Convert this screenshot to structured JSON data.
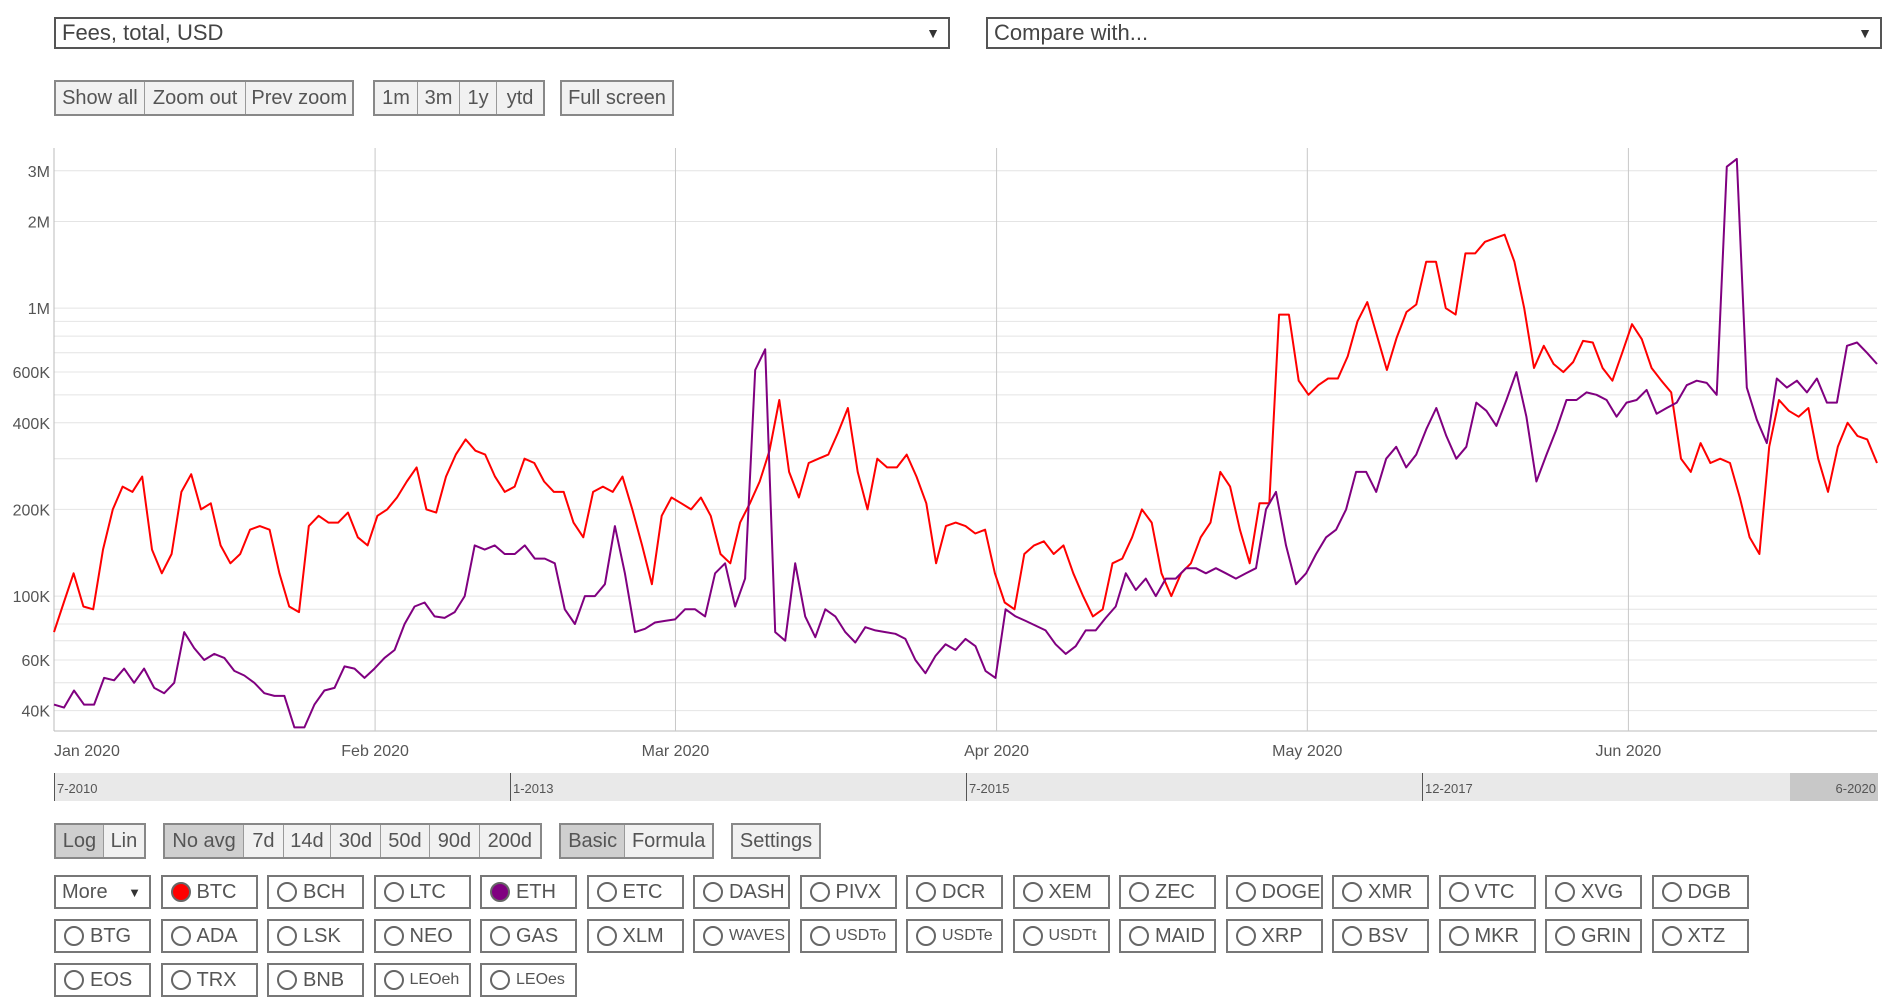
{
  "metric_select": {
    "value": "Fees, total, USD",
    "arrow": "▼"
  },
  "compare_select": {
    "value": "Compare with...",
    "arrow": "▼"
  },
  "zoom_buttons": [
    "Show all",
    "Zoom out",
    "Prev zoom"
  ],
  "range_buttons": [
    "1m",
    "3m",
    "1y",
    "ytd"
  ],
  "fullscreen_label": "Full screen",
  "scale_buttons": [
    "Log",
    "Lin"
  ],
  "avg_buttons": [
    "No avg",
    "7d",
    "14d",
    "30d",
    "50d",
    "90d",
    "200d"
  ],
  "mode_buttons": [
    "Basic",
    "Formula"
  ],
  "settings_label": "Settings",
  "more_label": "More",
  "more_arrow": "▼",
  "navigator_labels": [
    "7-2010",
    "1-2013",
    "7-2015",
    "12-2017",
    "6-2020"
  ],
  "coins": [
    {
      "name": "BTC",
      "color": "#ff0000",
      "selected": true
    },
    {
      "name": "BCH"
    },
    {
      "name": "LTC"
    },
    {
      "name": "ETH",
      "color": "#800080",
      "selected": true
    },
    {
      "name": "ETC"
    },
    {
      "name": "DASH"
    },
    {
      "name": "PIVX"
    },
    {
      "name": "DCR"
    },
    {
      "name": "XEM"
    },
    {
      "name": "ZEC"
    },
    {
      "name": "DOGE"
    },
    {
      "name": "XMR"
    },
    {
      "name": "VTC"
    },
    {
      "name": "XVG"
    },
    {
      "name": "DGB"
    },
    {
      "name": "BTG"
    },
    {
      "name": "ADA"
    },
    {
      "name": "LSK"
    },
    {
      "name": "NEO"
    },
    {
      "name": "GAS"
    },
    {
      "name": "XLM"
    },
    {
      "name": "WAVES"
    },
    {
      "name": "USDTo"
    },
    {
      "name": "USDTe"
    },
    {
      "name": "USDTt"
    },
    {
      "name": "MAID"
    },
    {
      "name": "XRP"
    },
    {
      "name": "BSV"
    },
    {
      "name": "MKR"
    },
    {
      "name": "GRIN"
    },
    {
      "name": "XTZ"
    },
    {
      "name": "EOS"
    },
    {
      "name": "TRX"
    },
    {
      "name": "BNB"
    },
    {
      "name": "LEOeh"
    },
    {
      "name": "LEOes"
    }
  ],
  "chart_data": {
    "type": "line",
    "title": "",
    "yscale": "log",
    "ylim": [
      34000,
      3600000
    ],
    "ytick_values": [
      40000,
      60000,
      100000,
      200000,
      400000,
      600000,
      1000000,
      2000000,
      3000000
    ],
    "ytick_labels": [
      "40K",
      "60K",
      "100K",
      "200K",
      "400K",
      "600K",
      "1M",
      "2M",
      "3M"
    ],
    "xtick_labels": [
      "Jan 2020",
      "Feb 2020",
      "Mar 2020",
      "Apr 2020",
      "May 2020",
      "Jun 2020"
    ],
    "xtick_days": [
      0,
      31,
      60,
      91,
      121,
      152
    ],
    "xlim": [
      0,
      176
    ],
    "grid": true,
    "legend": "none",
    "series": [
      {
        "color": "#ff0000",
        "values": [
          75000,
          95000,
          120000,
          92000,
          90000,
          145000,
          200000,
          240000,
          230000,
          260000,
          145000,
          120000,
          140000,
          230000,
          265000,
          200000,
          210000,
          150000,
          130000,
          140000,
          170000,
          175000,
          170000,
          120000,
          92000,
          88000,
          175000,
          190000,
          180000,
          180000,
          195000,
          160000,
          150000,
          190000,
          200000,
          220000,
          250000,
          280000,
          200000,
          195000,
          260000,
          310000,
          350000,
          320000,
          310000,
          260000,
          230000,
          240000,
          300000,
          290000,
          250000,
          230000,
          230000,
          180000,
          160000,
          230000,
          240000,
          230000,
          260000,
          200000,
          150000,
          110000,
          190000,
          220000,
          210000,
          200000,
          220000,
          190000,
          140000,
          130000,
          180000,
          210000,
          250000,
          320000,
          480000,
          270000,
          220000,
          290000,
          300000,
          310000,
          370000,
          450000,
          270000,
          200000,
          300000,
          280000,
          280000,
          310000,
          260000,
          210000,
          130000,
          175000,
          180000,
          175000,
          165000,
          170000,
          120000,
          95000,
          90000,
          140000,
          150000,
          155000,
          140000,
          150000,
          120000,
          100000,
          85000,
          90000,
          130000,
          135000,
          160000,
          200000,
          180000,
          120000,
          100000,
          120000,
          130000,
          160000,
          180000,
          270000,
          240000,
          170000,
          130000,
          210000,
          210000,
          950000,
          950000,
          560000,
          500000,
          540000,
          570000,
          570000,
          680000,
          900000,
          1050000,
          800000,
          610000,
          790000,
          970000,
          1030000,
          1450000,
          1450000,
          1000000,
          950000,
          1550000,
          1550000,
          1700000,
          1750000,
          1800000,
          1450000,
          1000000,
          620000,
          740000,
          640000,
          600000,
          650000,
          770000,
          760000,
          620000,
          560000,
          700000,
          880000,
          780000,
          620000,
          560000,
          510000,
          300000,
          270000,
          340000,
          290000,
          300000,
          290000,
          220000,
          160000,
          140000,
          330000,
          480000,
          440000,
          420000,
          450000,
          300000,
          230000,
          330000,
          400000,
          360000,
          350000,
          290000
        ]
      },
      {
        "color": "#800080",
        "values": [
          42000,
          41000,
          47000,
          42000,
          42000,
          52000,
          51000,
          56000,
          50000,
          56000,
          48000,
          46000,
          50000,
          75000,
          66000,
          60000,
          63000,
          61000,
          55000,
          53000,
          50000,
          46000,
          45000,
          45000,
          35000,
          35000,
          42000,
          47000,
          48000,
          57000,
          56000,
          52000,
          56000,
          61000,
          65000,
          80000,
          92000,
          95000,
          85000,
          84000,
          88000,
          100000,
          150000,
          145000,
          150000,
          140000,
          140000,
          150000,
          135000,
          135000,
          130000,
          90000,
          80000,
          100000,
          100000,
          110000,
          175000,
          120000,
          75000,
          77000,
          81000,
          82000,
          83000,
          90000,
          90000,
          85000,
          120000,
          130000,
          92000,
          115000,
          610000,
          720000,
          75000,
          70000,
          130000,
          85000,
          72000,
          90000,
          85000,
          75000,
          69000,
          78000,
          76000,
          75000,
          74000,
          71000,
          60000,
          54000,
          62000,
          68000,
          65000,
          71000,
          67000,
          55000,
          52000,
          90000,
          85000,
          82000,
          79000,
          76000,
          68000,
          63000,
          67000,
          76000,
          76000,
          84000,
          92000,
          120000,
          105000,
          115000,
          100000,
          115000,
          115000,
          125000,
          125000,
          120000,
          125000,
          120000,
          115000,
          120000,
          125000,
          200000,
          230000,
          150000,
          110000,
          120000,
          140000,
          160000,
          170000,
          200000,
          270000,
          270000,
          230000,
          300000,
          330000,
          280000,
          310000,
          380000,
          450000,
          360000,
          300000,
          330000,
          470000,
          440000,
          390000,
          480000,
          600000,
          420000,
          250000,
          310000,
          380000,
          480000,
          480000,
          510000,
          500000,
          480000,
          420000,
          470000,
          480000,
          520000,
          430000,
          450000,
          470000,
          540000,
          560000,
          550000,
          500000,
          3100000,
          3300000,
          530000,
          410000,
          340000,
          570000,
          530000,
          560000,
          510000,
          570000,
          470000,
          470000,
          740000,
          760000,
          700000,
          640000
        ]
      }
    ]
  }
}
